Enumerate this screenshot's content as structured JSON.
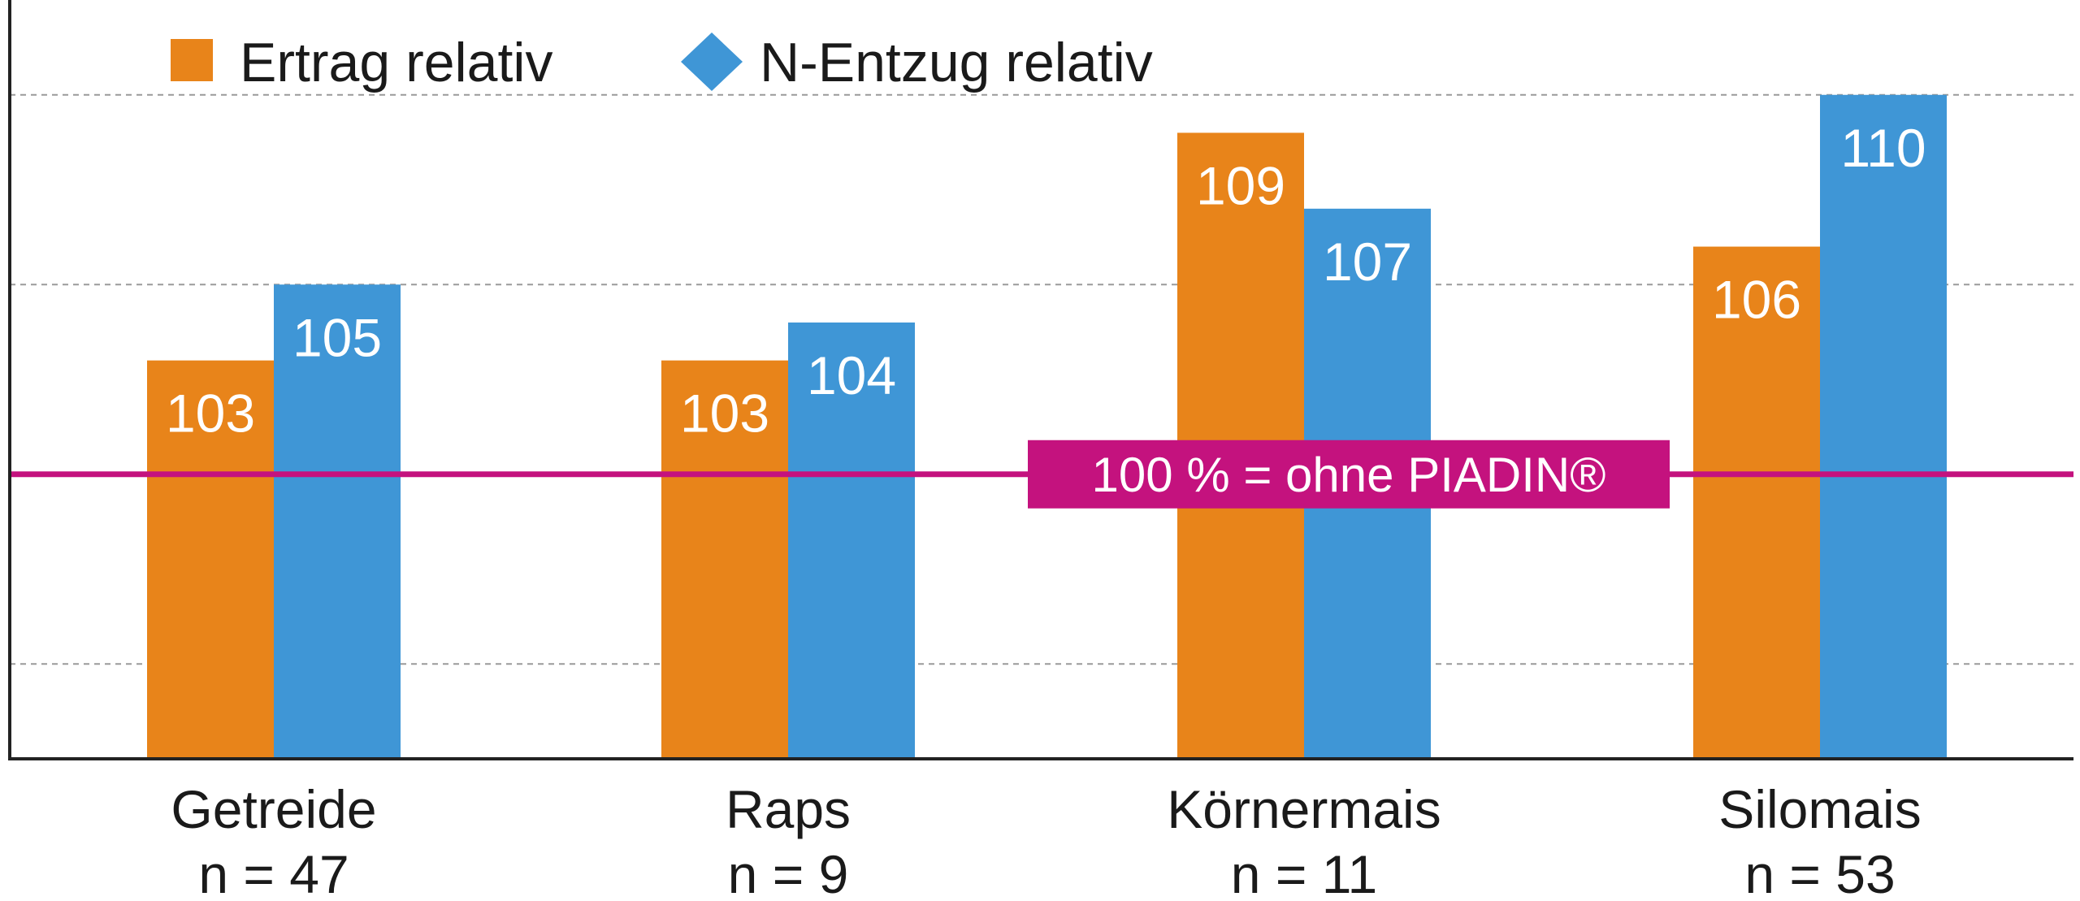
{
  "chart_data": {
    "type": "bar",
    "categories": [
      "Getreide",
      "Raps",
      "Körnermais",
      "Silomais"
    ],
    "category_counts": [
      "n = 47",
      "n = 9",
      "n = 11",
      "n = 53"
    ],
    "series": [
      {
        "name": "Ertrag relativ",
        "values": [
          103,
          103,
          109,
          106
        ],
        "color": "#E8841A",
        "marker": "square"
      },
      {
        "name": "N-Entzug relativ",
        "values": [
          105,
          104,
          107,
          110
        ],
        "color": "#3F96D6",
        "marker": "diamond"
      }
    ],
    "ylim": [
      92.5,
      112.5
    ],
    "gridlines": [
      95,
      105,
      110
    ],
    "grid": true,
    "legend_position": "top-left",
    "reference_line": {
      "value": 100,
      "label": "100 % = ohne PIADIN®",
      "color": "#C4127E"
    },
    "title": "",
    "xlabel": "",
    "ylabel": ""
  }
}
